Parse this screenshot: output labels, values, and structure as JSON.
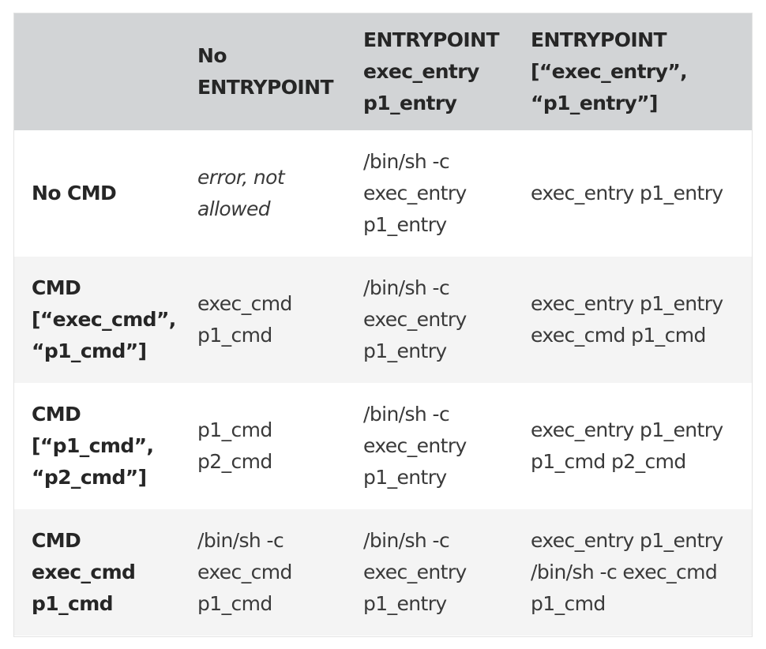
{
  "table": {
    "headers": [
      "",
      "No\nENTRYPOINT",
      "ENTRYPOINT\nexec_entry\np1_entry",
      "ENTRYPOINT\n[“exec_entry”,\n“p1_entry”]"
    ],
    "rows": [
      {
        "label": "No CMD",
        "cells": [
          "error, not\nallowed",
          "/bin/sh -c\nexec_entry\np1_entry",
          "exec_entry p1_entry"
        ]
      },
      {
        "label": "CMD\n[“exec_cmd”,\n“p1_cmd”]",
        "cells": [
          "exec_cmd\np1_cmd",
          "/bin/sh -c\nexec_entry\np1_entry",
          "exec_entry p1_entry\nexec_cmd p1_cmd"
        ]
      },
      {
        "label": "CMD\n[“p1_cmd”,\n“p2_cmd”]",
        "cells": [
          "p1_cmd\np2_cmd",
          "/bin/sh -c\nexec_entry\np1_entry",
          "exec_entry p1_entry\np1_cmd p2_cmd"
        ]
      },
      {
        "label": "CMD\nexec_cmd\np1_cmd",
        "cells": [
          "/bin/sh -c\nexec_cmd\np1_cmd",
          "/bin/sh -c\nexec_entry\np1_entry",
          "exec_entry p1_entry\n/bin/sh -c exec_cmd\np1_cmd"
        ]
      }
    ]
  },
  "colors": {
    "header_bg": "#d2d4d6",
    "row_alt_bg": "#f4f4f4",
    "text": "#2d2d2d"
  }
}
